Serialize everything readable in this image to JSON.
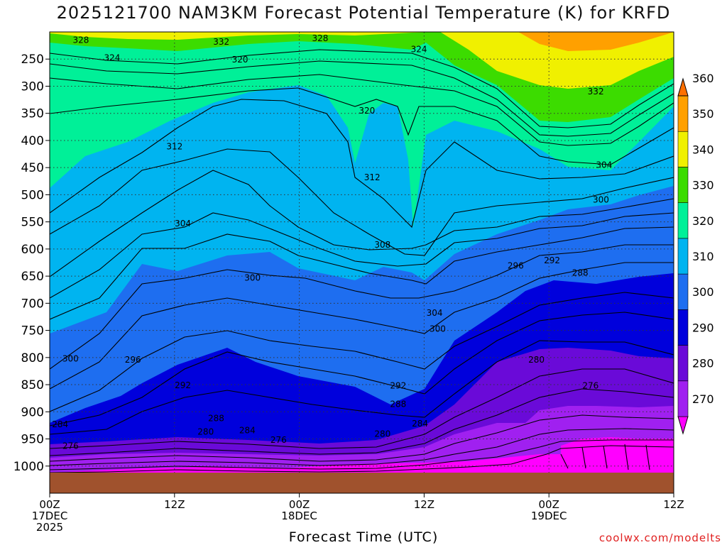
{
  "title": "2025121700 NAM3KM Forecast Potential Temperature (K) for KRFD",
  "credit": "coolwx.com/modelts",
  "chart_data": {
    "type": "contour",
    "title": "2025121700 NAM3KM Forecast Potential Temperature (K) for KRFD",
    "xlabel": "Forecast Time (UTC)",
    "ylabel": "",
    "x_hours_range": [
      0,
      60
    ],
    "y_pressure_range_hpa": [
      200,
      1050
    ],
    "y_ticks": [
      250,
      300,
      350,
      400,
      450,
      500,
      550,
      600,
      650,
      700,
      750,
      800,
      850,
      900,
      950,
      1000
    ],
    "x_ticks": [
      {
        "hour": 0,
        "lines": [
          "00Z",
          "17DEC",
          "2025"
        ]
      },
      {
        "hour": 12,
        "lines": [
          "12Z"
        ]
      },
      {
        "hour": 24,
        "lines": [
          "00Z",
          "18DEC"
        ]
      },
      {
        "hour": 36,
        "lines": [
          "12Z"
        ]
      },
      {
        "hour": 48,
        "lines": [
          "00Z",
          "19DEC"
        ]
      },
      {
        "hour": 60,
        "lines": [
          "12Z"
        ]
      }
    ],
    "colorbar": {
      "levels": [
        270,
        280,
        290,
        300,
        310,
        320,
        330,
        340,
        350,
        360
      ],
      "colors": [
        "#ff00ff",
        "#a020f0",
        "#6a0ad8",
        "#0000dc",
        "#1e6ef0",
        "#00b4f0",
        "#00f098",
        "#3cdc00",
        "#f0f000",
        "#ffa000",
        "#ff7000"
      ]
    },
    "contour_labels": [
      {
        "text": "328",
        "h": 3.0,
        "p": 215
      },
      {
        "text": "332",
        "h": 16.5,
        "p": 218
      },
      {
        "text": "328",
        "h": 26,
        "p": 212
      },
      {
        "text": "324",
        "h": 35.5,
        "p": 232
      },
      {
        "text": "324",
        "h": 6,
        "p": 248
      },
      {
        "text": "320",
        "h": 18.3,
        "p": 251
      },
      {
        "text": "332",
        "h": 52.5,
        "p": 310
      },
      {
        "text": "320",
        "h": 30.5,
        "p": 345
      },
      {
        "text": "312",
        "h": 12,
        "p": 411
      },
      {
        "text": "304",
        "h": 53.3,
        "p": 445
      },
      {
        "text": "312",
        "h": 31,
        "p": 468
      },
      {
        "text": "300",
        "h": 53,
        "p": 509
      },
      {
        "text": "304",
        "h": 12.8,
        "p": 553
      },
      {
        "text": "308",
        "h": 32,
        "p": 592
      },
      {
        "text": "300",
        "h": 19.5,
        "p": 653
      },
      {
        "text": "296",
        "h": 44.8,
        "p": 631
      },
      {
        "text": "292",
        "h": 48.3,
        "p": 621
      },
      {
        "text": "288",
        "h": 51,
        "p": 644
      },
      {
        "text": "304",
        "h": 37,
        "p": 718
      },
      {
        "text": "300",
        "h": 37.3,
        "p": 747
      },
      {
        "text": "300",
        "h": 2,
        "p": 802
      },
      {
        "text": "296",
        "h": 8,
        "p": 804
      },
      {
        "text": "280",
        "h": 46.8,
        "p": 804
      },
      {
        "text": "292",
        "h": 12.8,
        "p": 851
      },
      {
        "text": "276",
        "h": 52,
        "p": 852
      },
      {
        "text": "292",
        "h": 33.5,
        "p": 852
      },
      {
        "text": "288",
        "h": 33.5,
        "p": 886
      },
      {
        "text": "288",
        "h": 16,
        "p": 912
      },
      {
        "text": "284",
        "h": 1,
        "p": 923
      },
      {
        "text": "284",
        "h": 35.6,
        "p": 922
      },
      {
        "text": "280",
        "h": 15,
        "p": 937
      },
      {
        "text": "284",
        "h": 19,
        "p": 934
      },
      {
        "text": "280",
        "h": 32,
        "p": 941
      },
      {
        "text": "276",
        "h": 2,
        "p": 963
      },
      {
        "text": "276",
        "h": 22,
        "p": 952
      }
    ]
  }
}
